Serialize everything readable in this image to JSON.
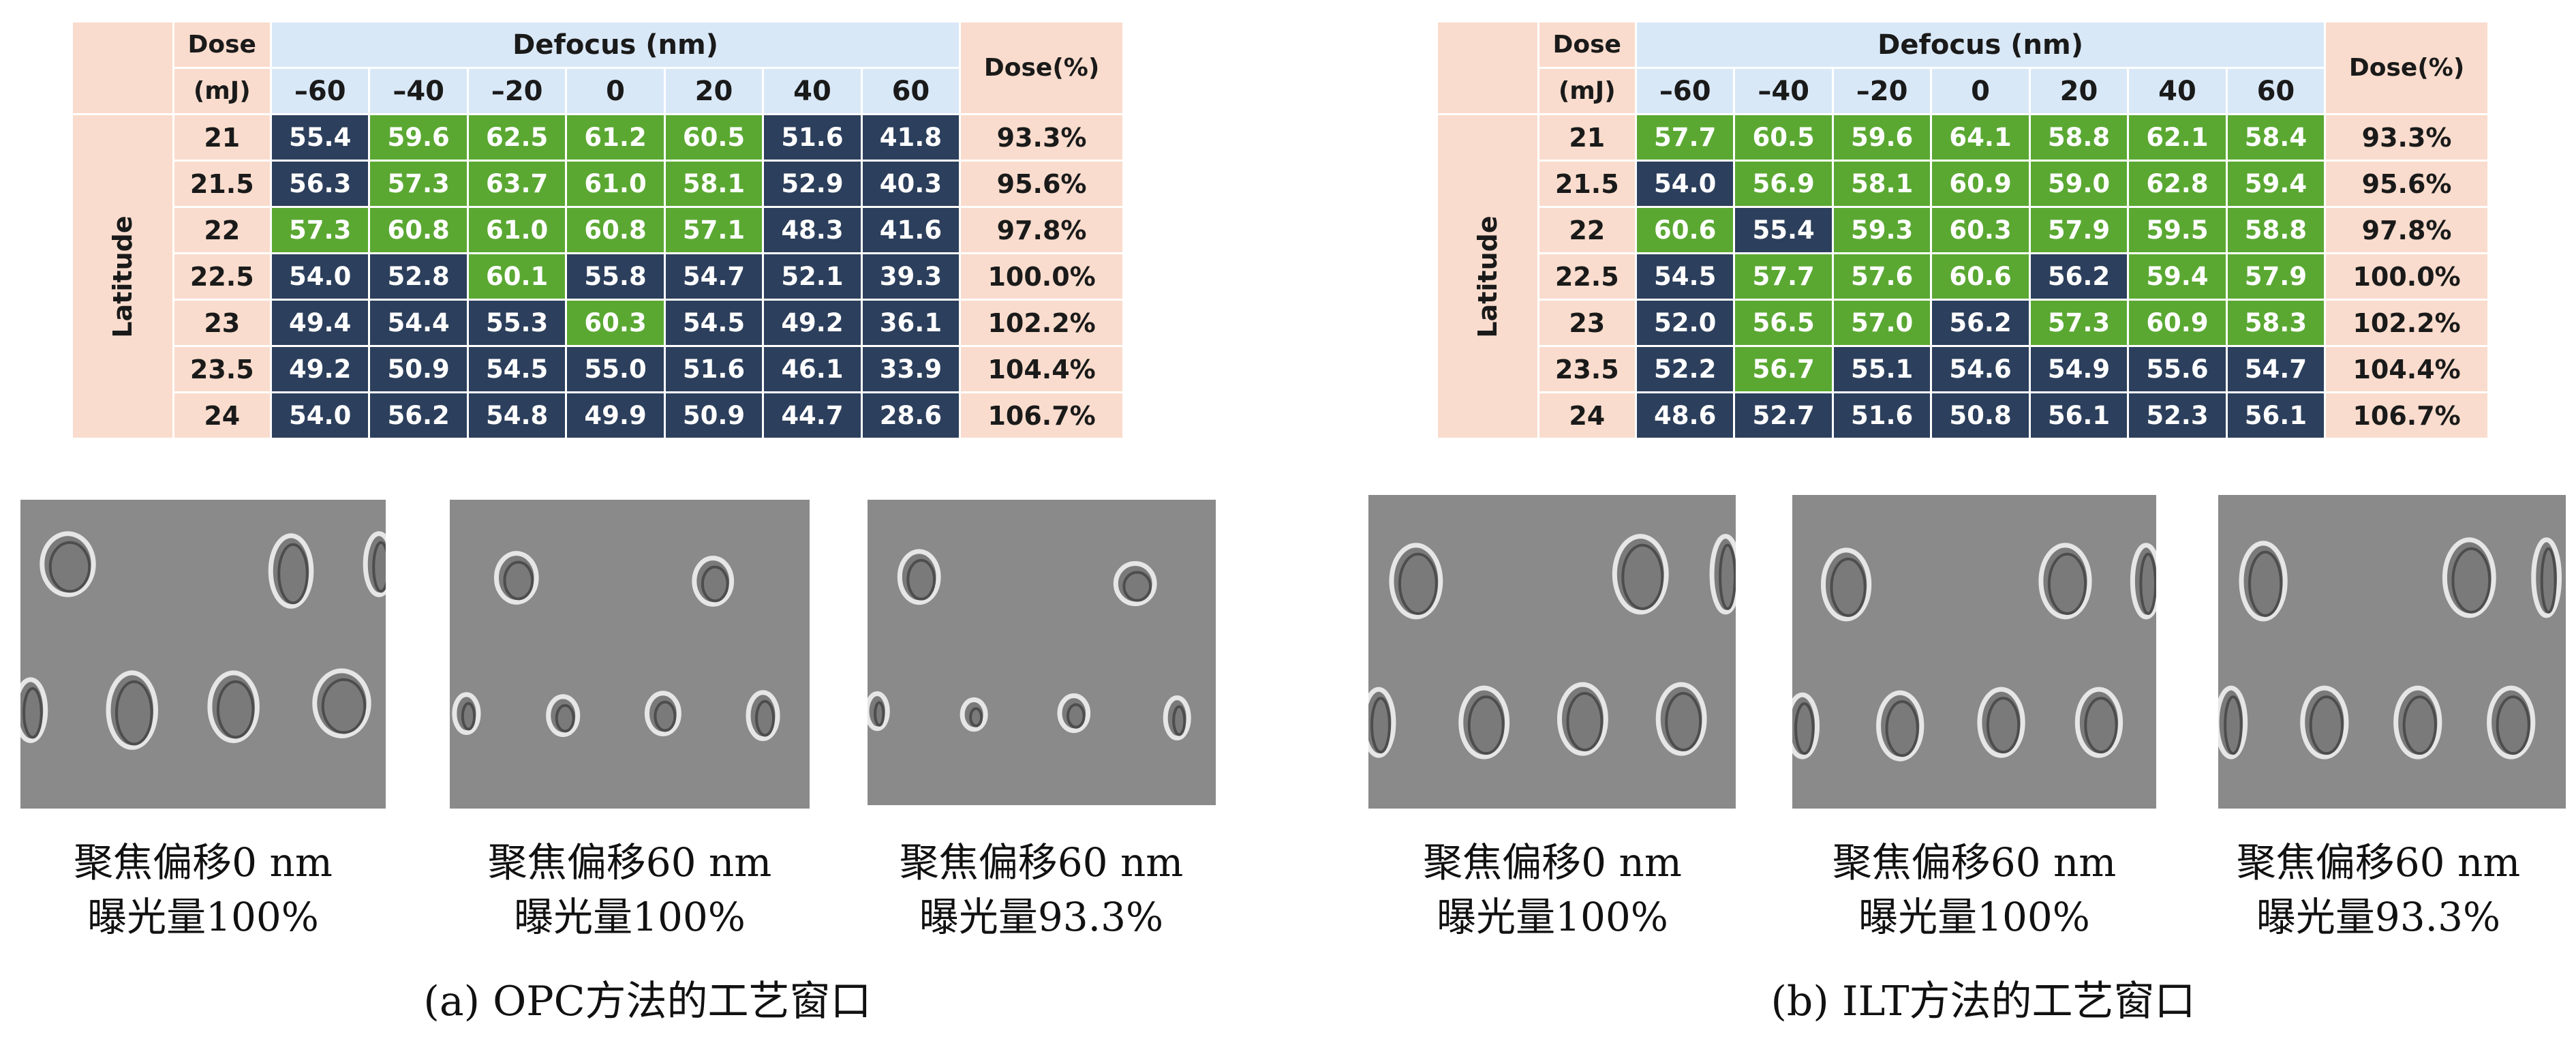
{
  "header": {
    "dose_top": "Dose",
    "dose_unit": "(mJ)",
    "defocus": "Defocus (nm)",
    "dose_pct": "Dose(%)",
    "latitude": "Latitude",
    "focus_columns": [
      "–60",
      "–40",
      "–20",
      "0",
      "20",
      "40",
      "60"
    ]
  },
  "panels": [
    {
      "subcaption": "(a) OPC方法的工艺窗口",
      "rows": [
        {
          "dose": "21",
          "values": [
            "55.4",
            "59.6",
            "62.5",
            "61.2",
            "60.5",
            "51.6",
            "41.8"
          ],
          "green": [
            0,
            1,
            1,
            1,
            1,
            0,
            0
          ],
          "pct": "93.3%"
        },
        {
          "dose": "21.5",
          "values": [
            "56.3",
            "57.3",
            "63.7",
            "61.0",
            "58.1",
            "52.9",
            "40.3"
          ],
          "green": [
            0,
            1,
            1,
            1,
            1,
            0,
            0
          ],
          "pct": "95.6%"
        },
        {
          "dose": "22",
          "values": [
            "57.3",
            "60.8",
            "61.0",
            "60.8",
            "57.1",
            "48.3",
            "41.6"
          ],
          "green": [
            1,
            1,
            1,
            1,
            1,
            0,
            0
          ],
          "pct": "97.8%"
        },
        {
          "dose": "22.5",
          "values": [
            "54.0",
            "52.8",
            "60.1",
            "55.8",
            "54.7",
            "52.1",
            "39.3"
          ],
          "green": [
            0,
            0,
            1,
            0,
            0,
            0,
            0
          ],
          "pct": "100.0%"
        },
        {
          "dose": "23",
          "values": [
            "49.4",
            "54.4",
            "55.3",
            "60.3",
            "54.5",
            "49.2",
            "36.1"
          ],
          "green": [
            0,
            0,
            0,
            1,
            0,
            0,
            0
          ],
          "pct": "102.2%"
        },
        {
          "dose": "23.5",
          "values": [
            "49.2",
            "50.9",
            "54.5",
            "55.0",
            "51.6",
            "46.1",
            "33.9"
          ],
          "green": [
            0,
            0,
            0,
            0,
            0,
            0,
            0
          ],
          "pct": "104.4%"
        },
        {
          "dose": "24",
          "values": [
            "54.0",
            "56.2",
            "54.8",
            "49.9",
            "50.9",
            "44.7",
            "28.6"
          ],
          "green": [
            0,
            0,
            0,
            0,
            0,
            0,
            0
          ],
          "pct": "106.7%"
        }
      ],
      "images": [
        {
          "line1": "聚焦偏移0 nm",
          "line2": "曝光量100%"
        },
        {
          "line1": "聚焦偏移60 nm",
          "line2": "曝光量100%"
        },
        {
          "line1": "聚焦偏移60 nm",
          "line2": "曝光量93.3%"
        }
      ]
    },
    {
      "subcaption": "(b) ILT方法的工艺窗口",
      "rows": [
        {
          "dose": "21",
          "values": [
            "57.7",
            "60.5",
            "59.6",
            "64.1",
            "58.8",
            "62.1",
            "58.4"
          ],
          "green": [
            1,
            1,
            1,
            1,
            1,
            1,
            1
          ],
          "pct": "93.3%"
        },
        {
          "dose": "21.5",
          "values": [
            "54.0",
            "56.9",
            "58.1",
            "60.9",
            "59.0",
            "62.8",
            "59.4"
          ],
          "green": [
            0,
            1,
            1,
            1,
            1,
            1,
            1
          ],
          "pct": "95.6%"
        },
        {
          "dose": "22",
          "values": [
            "60.6",
            "55.4",
            "59.3",
            "60.3",
            "57.9",
            "59.5",
            "58.8"
          ],
          "green": [
            1,
            0,
            1,
            1,
            1,
            1,
            1
          ],
          "pct": "97.8%"
        },
        {
          "dose": "22.5",
          "values": [
            "54.5",
            "57.7",
            "57.6",
            "60.6",
            "56.2",
            "59.4",
            "57.9"
          ],
          "green": [
            0,
            1,
            1,
            1,
            0,
            1,
            1
          ],
          "pct": "100.0%"
        },
        {
          "dose": "23",
          "values": [
            "52.0",
            "56.5",
            "57.0",
            "56.2",
            "57.3",
            "60.9",
            "58.3"
          ],
          "green": [
            0,
            1,
            1,
            0,
            1,
            1,
            1
          ],
          "pct": "102.2%"
        },
        {
          "dose": "23.5",
          "values": [
            "52.2",
            "56.7",
            "55.1",
            "54.6",
            "54.9",
            "55.6",
            "54.7"
          ],
          "green": [
            0,
            1,
            0,
            0,
            0,
            0,
            0
          ],
          "pct": "104.4%"
        },
        {
          "dose": "24",
          "values": [
            "48.6",
            "52.7",
            "51.6",
            "50.8",
            "56.1",
            "52.3",
            "56.1"
          ],
          "green": [
            0,
            0,
            0,
            0,
            0,
            0,
            0
          ],
          "pct": "106.7%"
        }
      ],
      "images": [
        {
          "line1": "聚焦偏移0 nm",
          "line2": "曝光量100%"
        },
        {
          "line1": "聚焦偏移60 nm",
          "line2": "曝光量100%"
        },
        {
          "line1": "聚焦偏移60 nm",
          "line2": "曝光量93.3%"
        }
      ]
    }
  ]
}
